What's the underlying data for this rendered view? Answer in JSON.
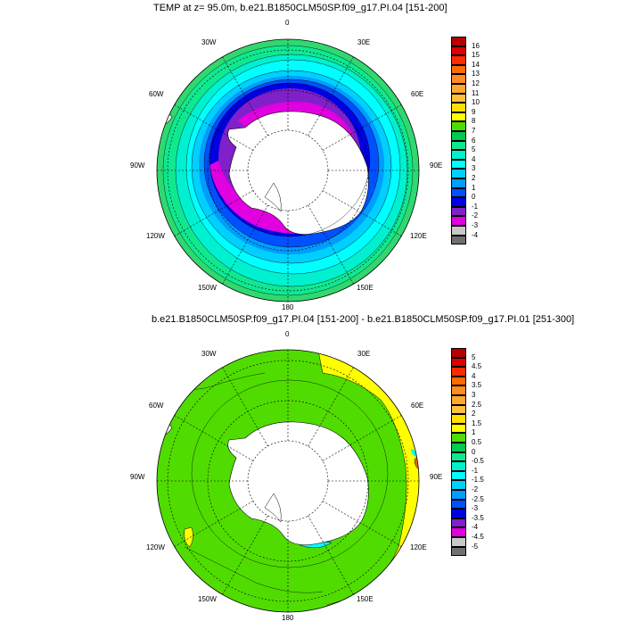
{
  "panels": [
    {
      "title": "TEMP at z=  95.0m, b.e21.B1850CLM50SP.f09_g17.PI.04 [151-200]",
      "longitude_labels": [
        "0",
        "30E",
        "60E",
        "90E",
        "120E",
        "150E",
        "180",
        "150W",
        "120W",
        "90W",
        "60W",
        "30W"
      ],
      "colorbar": {
        "tick_labels": [
          "16",
          "15",
          "14",
          "13",
          "12",
          "11",
          "10",
          "9",
          "8",
          "7",
          "6",
          "5",
          "4",
          "3",
          "2",
          "1",
          "0",
          "-1",
          "-2",
          "-3",
          "-4"
        ],
        "colors": [
          "#b40000",
          "#dc0000",
          "#ff2a00",
          "#ff6a00",
          "#ff8c20",
          "#ffa830",
          "#ffc040",
          "#ffe000",
          "#ffff00",
          "#50dc00",
          "#00c850",
          "#10e890",
          "#00f0d0",
          "#00ffff",
          "#00d0ff",
          "#009cff",
          "#0050ff",
          "#0000e0",
          "#8020c8",
          "#e000e0",
          "#c8c8c8",
          "#707070"
        ]
      }
    },
    {
      "title": "b.e21.B1850CLM50SP.f09_g17.PI.04 [151-200] - b.e21.B1850CLM50SP.f09_g17.PI.01 [251-300]",
      "longitude_labels": [
        "0",
        "30E",
        "60E",
        "90E",
        "120E",
        "150E",
        "180",
        "150W",
        "120W",
        "90W",
        "60W",
        "30W"
      ],
      "colorbar": {
        "tick_labels": [
          "5",
          "4.5",
          "4",
          "3.5",
          "3",
          "2.5",
          "2",
          "1.5",
          "1",
          "0.5",
          "0",
          "-0.5",
          "-1",
          "-1.5",
          "-2",
          "-2.5",
          "-3",
          "-3.5",
          "-4",
          "-4.5",
          "-5"
        ],
        "colors": [
          "#b40000",
          "#dc0000",
          "#ff2a00",
          "#ff6a00",
          "#ff8c20",
          "#ffa830",
          "#ffc040",
          "#ffe000",
          "#ffff00",
          "#50dc00",
          "#00c850",
          "#10e890",
          "#00f0d0",
          "#00ffff",
          "#00d0ff",
          "#009cff",
          "#0050ff",
          "#0000e0",
          "#8020c8",
          "#e000e0",
          "#c8c8c8",
          "#707070"
        ]
      }
    }
  ],
  "palette": {
    "land": "#ffffff",
    "ocean_warm": "#40e040",
    "ocean_cyan": "#00e8f0",
    "ocean_blue": "#0000e0",
    "ocean_purple": "#8020c8",
    "ocean_magenta": "#e000e0",
    "diff_green": "#50dc00",
    "diff_yellow": "#ffff00",
    "diff_cyan": "#00ffff"
  }
}
